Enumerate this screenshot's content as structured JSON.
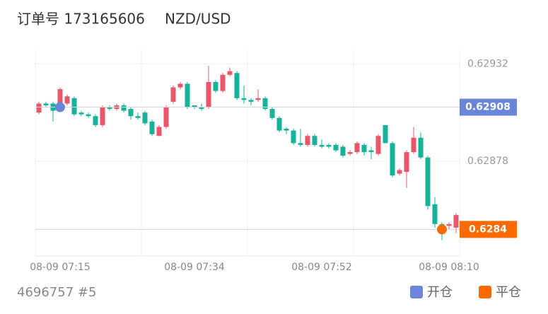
{
  "chart_data": {
    "type": "candlestick",
    "title": "订单号 173165606",
    "subtitle": "NZD/USD",
    "categories": [
      null,
      null,
      null,
      "08-09 07:15",
      null,
      null,
      null,
      null,
      null,
      null,
      null,
      null,
      null,
      null,
      null,
      null,
      null,
      null,
      null,
      null,
      null,
      null,
      "08-09 07:34",
      null,
      null,
      null,
      null,
      null,
      null,
      null,
      null,
      null,
      null,
      null,
      null,
      null,
      null,
      null,
      null,
      null,
      "08-09 07:52",
      null,
      null,
      null,
      null,
      null,
      null,
      null,
      null,
      null,
      null,
      null,
      null,
      null,
      null,
      null,
      null,
      null,
      "08-09 08:10",
      null
    ],
    "open": [
      0.62905,
      0.6291,
      0.6291,
      0.6291,
      0.6291,
      0.62913,
      0.62905,
      0.62904,
      0.62903,
      0.62898,
      0.62908,
      0.62907,
      0.62909,
      0.62907,
      0.62903,
      0.62905,
      0.629,
      0.62892,
      0.62897,
      0.62911,
      0.62919,
      0.62921,
      0.62909,
      0.62908,
      0.62908,
      0.62922,
      0.62917,
      0.62926,
      0.62927,
      0.62913,
      0.62912,
      0.62912,
      0.62913,
      0.62907,
      0.62902,
      0.62896,
      0.62895,
      0.62888,
      0.62887,
      0.62892,
      0.62887,
      0.62887,
      0.62887,
      0.62886,
      0.62882,
      0.62883,
      0.62887,
      0.62884,
      0.62882,
      0.62898,
      0.62888,
      0.62871,
      0.62872,
      0.62883,
      0.62891,
      0.6288,
      0.62854,
      0.62843,
      0.62842,
      0.62841
    ],
    "high": [
      0.62911,
      0.62911,
      0.62911,
      0.62919,
      0.62915,
      0.62914,
      0.62906,
      0.62905,
      0.62904,
      0.62909,
      0.62909,
      0.6291,
      0.6291,
      0.62908,
      0.62905,
      0.62906,
      0.62901,
      0.62898,
      0.62909,
      0.6292,
      0.62922,
      0.62922,
      0.62909,
      0.6291,
      0.62931,
      0.62923,
      0.62927,
      0.6293,
      0.62928,
      0.6292,
      0.62913,
      0.62918,
      0.62914,
      0.62908,
      0.62903,
      0.62897,
      0.62896,
      0.62896,
      0.62893,
      0.62893,
      0.6289,
      0.62888,
      0.62888,
      0.62887,
      0.62884,
      0.62889,
      0.62888,
      0.62886,
      0.62893,
      0.62898,
      0.62889,
      0.62874,
      0.62884,
      0.62897,
      0.62894,
      0.62881,
      0.62858,
      0.62844,
      0.62844,
      0.62849
    ],
    "low": [
      0.62904,
      0.62908,
      0.629,
      0.62908,
      0.62909,
      0.62903,
      0.62903,
      0.62902,
      0.62897,
      0.62897,
      0.62906,
      0.62906,
      0.62905,
      0.62901,
      0.62901,
      0.62898,
      0.62892,
      0.62892,
      0.62896,
      0.6291,
      0.62918,
      0.62907,
      0.62907,
      0.62906,
      0.62907,
      0.62916,
      0.62916,
      0.62925,
      0.62912,
      0.6291,
      0.62909,
      0.62911,
      0.62906,
      0.62901,
      0.62894,
      0.62893,
      0.62887,
      0.62886,
      0.62886,
      0.62886,
      0.62885,
      0.62885,
      0.62883,
      0.6288,
      0.62881,
      0.62882,
      0.62881,
      0.62879,
      0.62881,
      0.62888,
      0.62869,
      0.6287,
      0.62863,
      0.62882,
      0.62879,
      0.62851,
      0.62841,
      0.62834,
      0.6284,
      0.62838
    ],
    "close": [
      0.6291,
      0.62909,
      0.62906,
      0.62918,
      0.62914,
      0.62904,
      0.62904,
      0.62903,
      0.62898,
      0.62908,
      0.62907,
      0.62909,
      0.62906,
      0.62903,
      0.62902,
      0.62899,
      0.62893,
      0.62897,
      0.62908,
      0.62919,
      0.62921,
      0.62908,
      0.62908,
      0.62907,
      0.62922,
      0.62917,
      0.62926,
      0.62928,
      0.62913,
      0.62912,
      0.62911,
      0.62913,
      0.62907,
      0.62902,
      0.62895,
      0.62895,
      0.62888,
      0.62887,
      0.62892,
      0.62887,
      0.62886,
      0.62886,
      0.62884,
      0.62881,
      0.62883,
      0.62888,
      0.62883,
      0.62883,
      0.62892,
      0.62888,
      0.6287,
      0.62873,
      0.62883,
      0.62891,
      0.6288,
      0.62853,
      0.62843,
      0.62841,
      0.62843,
      0.62848
    ],
    "up_color": "#e8566a",
    "down_color": "#16b29a",
    "ylim": [
      0.62826,
      0.62944
    ],
    "yticks": [
      0.62878,
      0.62932
    ],
    "grid": true,
    "markers": [
      {
        "name": "开仓",
        "index": 3,
        "value": 0.62908,
        "color": "#6b85d8"
      },
      {
        "name": "平仓",
        "index": 57,
        "value": 0.6284,
        "color": "#ff6a00"
      }
    ],
    "footer": "4696757 #5"
  }
}
